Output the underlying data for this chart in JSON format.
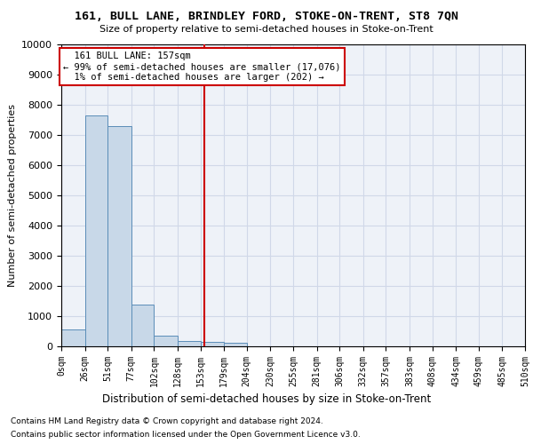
{
  "title1": "161, BULL LANE, BRINDLEY FORD, STOKE-ON-TRENT, ST8 7QN",
  "title2": "Size of property relative to semi-detached houses in Stoke-on-Trent",
  "xlabel": "Distribution of semi-detached houses by size in Stoke-on-Trent",
  "ylabel": "Number of semi-detached properties",
  "footer1": "Contains HM Land Registry data © Crown copyright and database right 2024.",
  "footer2": "Contains public sector information licensed under the Open Government Licence v3.0.",
  "annotation_title": "161 BULL LANE: 157sqm",
  "annotation_line1": "← 99% of semi-detached houses are smaller (17,076)",
  "annotation_line2": "1% of semi-detached houses are larger (202) →",
  "property_size": 157,
  "bin_edges": [
    0,
    26,
    51,
    77,
    102,
    128,
    153,
    179,
    204,
    230,
    255,
    281,
    306,
    332,
    357,
    383,
    408,
    434,
    459,
    485,
    510
  ],
  "bar_heights": [
    550,
    7650,
    7300,
    1380,
    350,
    170,
    140,
    110,
    0,
    0,
    0,
    0,
    0,
    0,
    0,
    0,
    0,
    0,
    0,
    0
  ],
  "bar_color": "#c8d8e8",
  "bar_edge_color": "#5b8db8",
  "vline_color": "#cc0000",
  "vline_x": 157,
  "ylim": [
    0,
    10000
  ],
  "yticks": [
    0,
    1000,
    2000,
    3000,
    4000,
    5000,
    6000,
    7000,
    8000,
    9000,
    10000
  ],
  "grid_color": "#d0d8e8",
  "bg_color": "#eef2f8",
  "annotation_box_color": "#ffffff",
  "annotation_box_edge": "#cc0000"
}
